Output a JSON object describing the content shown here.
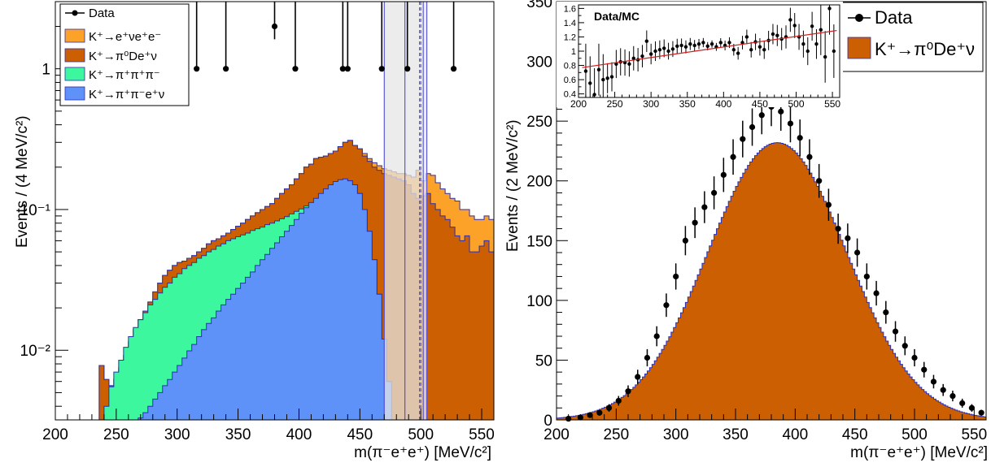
{
  "chart_data": [
    {
      "type": "area",
      "panel": "left",
      "xlabel": "m(π⁻e⁺e⁺) [MeV/c²]",
      "ylabel": "Events / (4 MeV/c²)",
      "xlim": [
        200,
        560
      ],
      "ylim": [
        0.0032,
        3
      ],
      "yscale": "log",
      "x_ticks": [
        "200",
        "250",
        "300",
        "350",
        "400",
        "450",
        "500",
        "550"
      ],
      "y_ticks": [
        "10⁻²",
        "10⁻¹",
        "1"
      ],
      "legend_placement": "top-left",
      "legend": [
        "Data",
        "K⁺→e⁺νe⁺e⁻",
        "K⁺→π⁰De⁺ν",
        "K⁺→π⁺π⁺π⁻",
        "K⁺→π⁺π⁻e⁺ν"
      ],
      "colors": {
        "Ke3ee": "#fda228",
        "pi0D": "#cb5f02",
        "k3pi": "#3df79e",
        "pipienu": "#5f92f8",
        "edge": "#2a2fb4"
      },
      "bin_width": 4,
      "x_start": 200,
      "stack_bands": [
        {
          "name": "K⁺→π⁺π⁻e⁺ν",
          "cum": [
            0,
            0,
            0,
            0,
            0,
            0,
            0,
            0,
            0,
            0,
            0,
            0,
            0,
            0,
            0,
            0.0024,
            0.0028,
            0.0033,
            0.0036,
            0.004,
            0.0045,
            0.005,
            0.0056,
            0.0062,
            0.007,
            0.0078,
            0.0088,
            0.0099,
            0.011,
            0.0125,
            0.014,
            0.0155,
            0.017,
            0.019,
            0.021,
            0.023,
            0.025,
            0.0275,
            0.03,
            0.033,
            0.036,
            0.04,
            0.044,
            0.048,
            0.053,
            0.058,
            0.064,
            0.07,
            0.077,
            0.085,
            0.094,
            0.103,
            0.112,
            0.12,
            0.13,
            0.14,
            0.15,
            0.158,
            0.163,
            0.165,
            0.16,
            0.15,
            0.13,
            0.1,
            0.07,
            0.044,
            0.025,
            0.012,
            0.006,
            0,
            0,
            0,
            0,
            0,
            0,
            0,
            0,
            0,
            0,
            0,
            0,
            0,
            0,
            0,
            0,
            0,
            0,
            0,
            0,
            0
          ]
        },
        {
          "name": "K⁺→π⁺π⁺π⁻",
          "cum": [
            0,
            0,
            0,
            0,
            0,
            0,
            0,
            0,
            0,
            0.0024,
            0.004,
            0.0055,
            0.007,
            0.0085,
            0.0105,
            0.0125,
            0.0145,
            0.0165,
            0.0185,
            0.021,
            0.023,
            0.0255,
            0.028,
            0.03,
            0.033,
            0.035,
            0.038,
            0.04,
            0.042,
            0.045,
            0.047,
            0.05,
            0.052,
            0.055,
            0.057,
            0.06,
            0.062,
            0.064,
            0.066,
            0.068,
            0.071,
            0.073,
            0.075,
            0.078,
            0.08,
            0.083,
            0.086,
            0.089,
            0.093,
            0.097,
            0.101,
            0.106,
            0.111,
            0.117,
            0.123,
            0.13,
            0.139,
            0.148,
            0.155,
            0.16,
            0.16,
            0.15,
            0.13,
            0.1,
            0.07,
            0.044,
            0.025,
            0.012,
            0.006,
            0,
            0,
            0,
            0,
            0,
            0,
            0,
            0,
            0,
            0,
            0,
            0,
            0,
            0,
            0,
            0,
            0,
            0,
            0,
            0,
            0
          ]
        },
        {
          "name": "K⁺→π⁰De⁺ν",
          "cum": [
            0,
            0,
            0,
            0,
            0,
            0,
            0,
            0,
            0,
            0.0078,
            0.0062,
            0.0056,
            0.0062,
            0.0075,
            0.0092,
            0.0115,
            0.014,
            0.0165,
            0.019,
            0.022,
            0.026,
            0.03,
            0.034,
            0.037,
            0.04,
            0.042,
            0.043,
            0.045,
            0.047,
            0.05,
            0.053,
            0.057,
            0.06,
            0.062,
            0.065,
            0.068,
            0.072,
            0.076,
            0.08,
            0.085,
            0.09,
            0.095,
            0.1,
            0.105,
            0.11,
            0.12,
            0.13,
            0.14,
            0.15,
            0.165,
            0.18,
            0.2,
            0.21,
            0.23,
            0.235,
            0.24,
            0.25,
            0.26,
            0.28,
            0.3,
            0.31,
            0.285,
            0.27,
            0.24,
            0.22,
            0.2,
            0.19,
            0.18,
            0.175,
            0.17,
            0.165,
            0.16,
            0.15,
            0.13,
            0.12,
            0.125,
            0.13,
            0.11,
            0.1,
            0.09,
            0.085,
            0.075,
            0.065,
            0.06,
            0.065,
            0.05,
            0.05,
            0.055,
            0.06,
            0.05
          ]
        },
        {
          "name": "K⁺→e⁺νe⁺e⁻",
          "cum": [
            0,
            0,
            0,
            0,
            0,
            0,
            0,
            0,
            0,
            0.0078,
            0.0062,
            0.0056,
            0.0062,
            0.0075,
            0.0092,
            0.0115,
            0.014,
            0.0165,
            0.019,
            0.022,
            0.026,
            0.03,
            0.034,
            0.037,
            0.04,
            0.042,
            0.043,
            0.045,
            0.047,
            0.05,
            0.053,
            0.057,
            0.06,
            0.062,
            0.065,
            0.068,
            0.072,
            0.076,
            0.08,
            0.085,
            0.09,
            0.095,
            0.1,
            0.105,
            0.11,
            0.12,
            0.13,
            0.14,
            0.15,
            0.165,
            0.18,
            0.2,
            0.21,
            0.23,
            0.235,
            0.24,
            0.25,
            0.26,
            0.28,
            0.3,
            0.31,
            0.285,
            0.27,
            0.25,
            0.23,
            0.215,
            0.205,
            0.195,
            0.19,
            0.185,
            0.18,
            0.18,
            0.175,
            0.17,
            0.19,
            0.16,
            0.18,
            0.175,
            0.155,
            0.14,
            0.13,
            0.12,
            0.115,
            0.1,
            0.1,
            0.09,
            0.085,
            0.085,
            0.09,
            0.085
          ]
        }
      ],
      "signal_window": {
        "x": [
          470,
          505
        ],
        "edges": [
          487,
          499,
          500,
          502
        ]
      },
      "points": [
        {
          "x": 316,
          "y": 1
        },
        {
          "x": 340,
          "y": 1
        },
        {
          "x": 380,
          "y": 2
        },
        {
          "x": 397,
          "y": 1
        },
        {
          "x": 436,
          "y": 1
        },
        {
          "x": 440,
          "y": 1
        },
        {
          "x": 468,
          "y": 1
        },
        {
          "x": 489,
          "y": 1
        },
        {
          "x": 527,
          "y": 1
        }
      ],
      "point_errors": [
        {
          "lo": 0,
          "hi": 2.3
        },
        {
          "lo": 0,
          "hi": 2.3
        },
        {
          "lo": 0.38,
          "hi": 4.0
        },
        {
          "lo": 0,
          "hi": 2.3
        },
        {
          "lo": 0,
          "hi": 2.3
        },
        {
          "lo": 0,
          "hi": 2.3
        },
        {
          "lo": 0,
          "hi": 2.3
        },
        {
          "lo": 0,
          "hi": 2.3
        },
        {
          "lo": 0,
          "hi": 2.3
        }
      ]
    },
    {
      "type": "area",
      "panel": "right",
      "xlabel": "m(π⁻e⁺e⁺) [MeV/c²]",
      "ylabel": "Events / (2 MeV/c²)",
      "xlim": [
        200,
        560
      ],
      "ylim": [
        0,
        350
      ],
      "x_ticks": [
        "200",
        "250",
        "300",
        "350",
        "400",
        "450",
        "500",
        "550"
      ],
      "y_ticks": [
        "0",
        "50",
        "100",
        "150",
        "200",
        "250",
        "300",
        "350"
      ],
      "legend_placement": "top-right",
      "legend": [
        "Data",
        "K⁺→π⁰De⁺ν"
      ],
      "colors": {
        "mc": "#cb5f02",
        "edge": "#2a2fb4"
      },
      "mc_peak": 232,
      "mc_mean": 385,
      "mc_sigma": 58,
      "points": [
        {
          "x": 210,
          "y": 1
        },
        {
          "x": 220,
          "y": 2
        },
        {
          "x": 228,
          "y": 4
        },
        {
          "x": 236,
          "y": 6
        },
        {
          "x": 244,
          "y": 10
        },
        {
          "x": 252,
          "y": 16
        },
        {
          "x": 260,
          "y": 24
        },
        {
          "x": 268,
          "y": 36
        },
        {
          "x": 276,
          "y": 52
        },
        {
          "x": 284,
          "y": 70
        },
        {
          "x": 292,
          "y": 96
        },
        {
          "x": 300,
          "y": 120
        },
        {
          "x": 308,
          "y": 150
        },
        {
          "x": 316,
          "y": 165
        },
        {
          "x": 324,
          "y": 178
        },
        {
          "x": 332,
          "y": 190
        },
        {
          "x": 340,
          "y": 205
        },
        {
          "x": 348,
          "y": 220
        },
        {
          "x": 356,
          "y": 235
        },
        {
          "x": 364,
          "y": 245
        },
        {
          "x": 372,
          "y": 255
        },
        {
          "x": 380,
          "y": 262
        },
        {
          "x": 388,
          "y": 258
        },
        {
          "x": 396,
          "y": 248
        },
        {
          "x": 404,
          "y": 236
        },
        {
          "x": 412,
          "y": 220
        },
        {
          "x": 420,
          "y": 200
        },
        {
          "x": 428,
          "y": 180
        },
        {
          "x": 436,
          "y": 160
        },
        {
          "x": 444,
          "y": 152
        },
        {
          "x": 452,
          "y": 140
        },
        {
          "x": 460,
          "y": 120
        },
        {
          "x": 468,
          "y": 106
        },
        {
          "x": 476,
          "y": 90
        },
        {
          "x": 484,
          "y": 74
        },
        {
          "x": 492,
          "y": 62
        },
        {
          "x": 500,
          "y": 52
        },
        {
          "x": 508,
          "y": 42
        },
        {
          "x": 516,
          "y": 32
        },
        {
          "x": 524,
          "y": 25
        },
        {
          "x": 532,
          "y": 20
        },
        {
          "x": 540,
          "y": 14
        },
        {
          "x": 548,
          "y": 10
        },
        {
          "x": 556,
          "y": 6
        }
      ],
      "inset": {
        "title": "Data/MC",
        "xlim": [
          200,
          560
        ],
        "ylim": [
          0.35,
          1.65
        ],
        "x_ticks": [
          "200",
          "250",
          "300",
          "350",
          "400",
          "450",
          "500",
          "550"
        ],
        "y_ticks": [
          "0.4",
          "0.6",
          "0.8",
          "1",
          "1.2",
          "1.4",
          "1.6"
        ],
        "fit_line": [
          [
            205,
            0.77
          ],
          [
            556,
            1.29
          ]
        ],
        "fit_color": "#d01e1e",
        "points": [
          {
            "x": 210,
            "y": 0.72
          },
          {
            "x": 216,
            "y": 0.55
          },
          {
            "x": 222,
            "y": 0.39
          },
          {
            "x": 228,
            "y": 0.74
          },
          {
            "x": 234,
            "y": 0.6
          },
          {
            "x": 240,
            "y": 0.62
          },
          {
            "x": 246,
            "y": 0.64
          },
          {
            "x": 252,
            "y": 0.82
          },
          {
            "x": 258,
            "y": 0.85
          },
          {
            "x": 264,
            "y": 0.84
          },
          {
            "x": 270,
            "y": 0.82
          },
          {
            "x": 276,
            "y": 0.9
          },
          {
            "x": 282,
            "y": 0.88
          },
          {
            "x": 288,
            "y": 0.93
          },
          {
            "x": 294,
            "y": 1.14
          },
          {
            "x": 300,
            "y": 0.96
          },
          {
            "x": 306,
            "y": 1.0
          },
          {
            "x": 312,
            "y": 1.02
          },
          {
            "x": 318,
            "y": 1.04
          },
          {
            "x": 324,
            "y": 1.0
          },
          {
            "x": 330,
            "y": 1.03
          },
          {
            "x": 336,
            "y": 1.07
          },
          {
            "x": 342,
            "y": 1.08
          },
          {
            "x": 348,
            "y": 1.06
          },
          {
            "x": 354,
            "y": 1.1
          },
          {
            "x": 360,
            "y": 1.08
          },
          {
            "x": 366,
            "y": 1.1
          },
          {
            "x": 372,
            "y": 1.12
          },
          {
            "x": 378,
            "y": 1.07
          },
          {
            "x": 384,
            "y": 1.1
          },
          {
            "x": 390,
            "y": 1.06
          },
          {
            "x": 396,
            "y": 1.12
          },
          {
            "x": 402,
            "y": 1.08
          },
          {
            "x": 408,
            "y": 1.12
          },
          {
            "x": 414,
            "y": 1.02
          },
          {
            "x": 420,
            "y": 0.97
          },
          {
            "x": 426,
            "y": 1.12
          },
          {
            "x": 432,
            "y": 1.2
          },
          {
            "x": 438,
            "y": 1.02
          },
          {
            "x": 444,
            "y": 1.13
          },
          {
            "x": 450,
            "y": 1.06
          },
          {
            "x": 456,
            "y": 1.02
          },
          {
            "x": 462,
            "y": 1.15
          },
          {
            "x": 468,
            "y": 1.24
          },
          {
            "x": 474,
            "y": 1.22
          },
          {
            "x": 480,
            "y": 1.17
          },
          {
            "x": 486,
            "y": 1.2
          },
          {
            "x": 492,
            "y": 1.44
          },
          {
            "x": 498,
            "y": 1.36
          },
          {
            "x": 504,
            "y": 1.2
          },
          {
            "x": 510,
            "y": 1.1
          },
          {
            "x": 516,
            "y": 1.0
          },
          {
            "x": 522,
            "y": 1.35
          },
          {
            "x": 528,
            "y": 1.1
          },
          {
            "x": 534,
            "y": 1.3
          },
          {
            "x": 540,
            "y": 0.92
          },
          {
            "x": 546,
            "y": 1.6
          },
          {
            "x": 552,
            "y": 1.0
          }
        ]
      }
    }
  ]
}
